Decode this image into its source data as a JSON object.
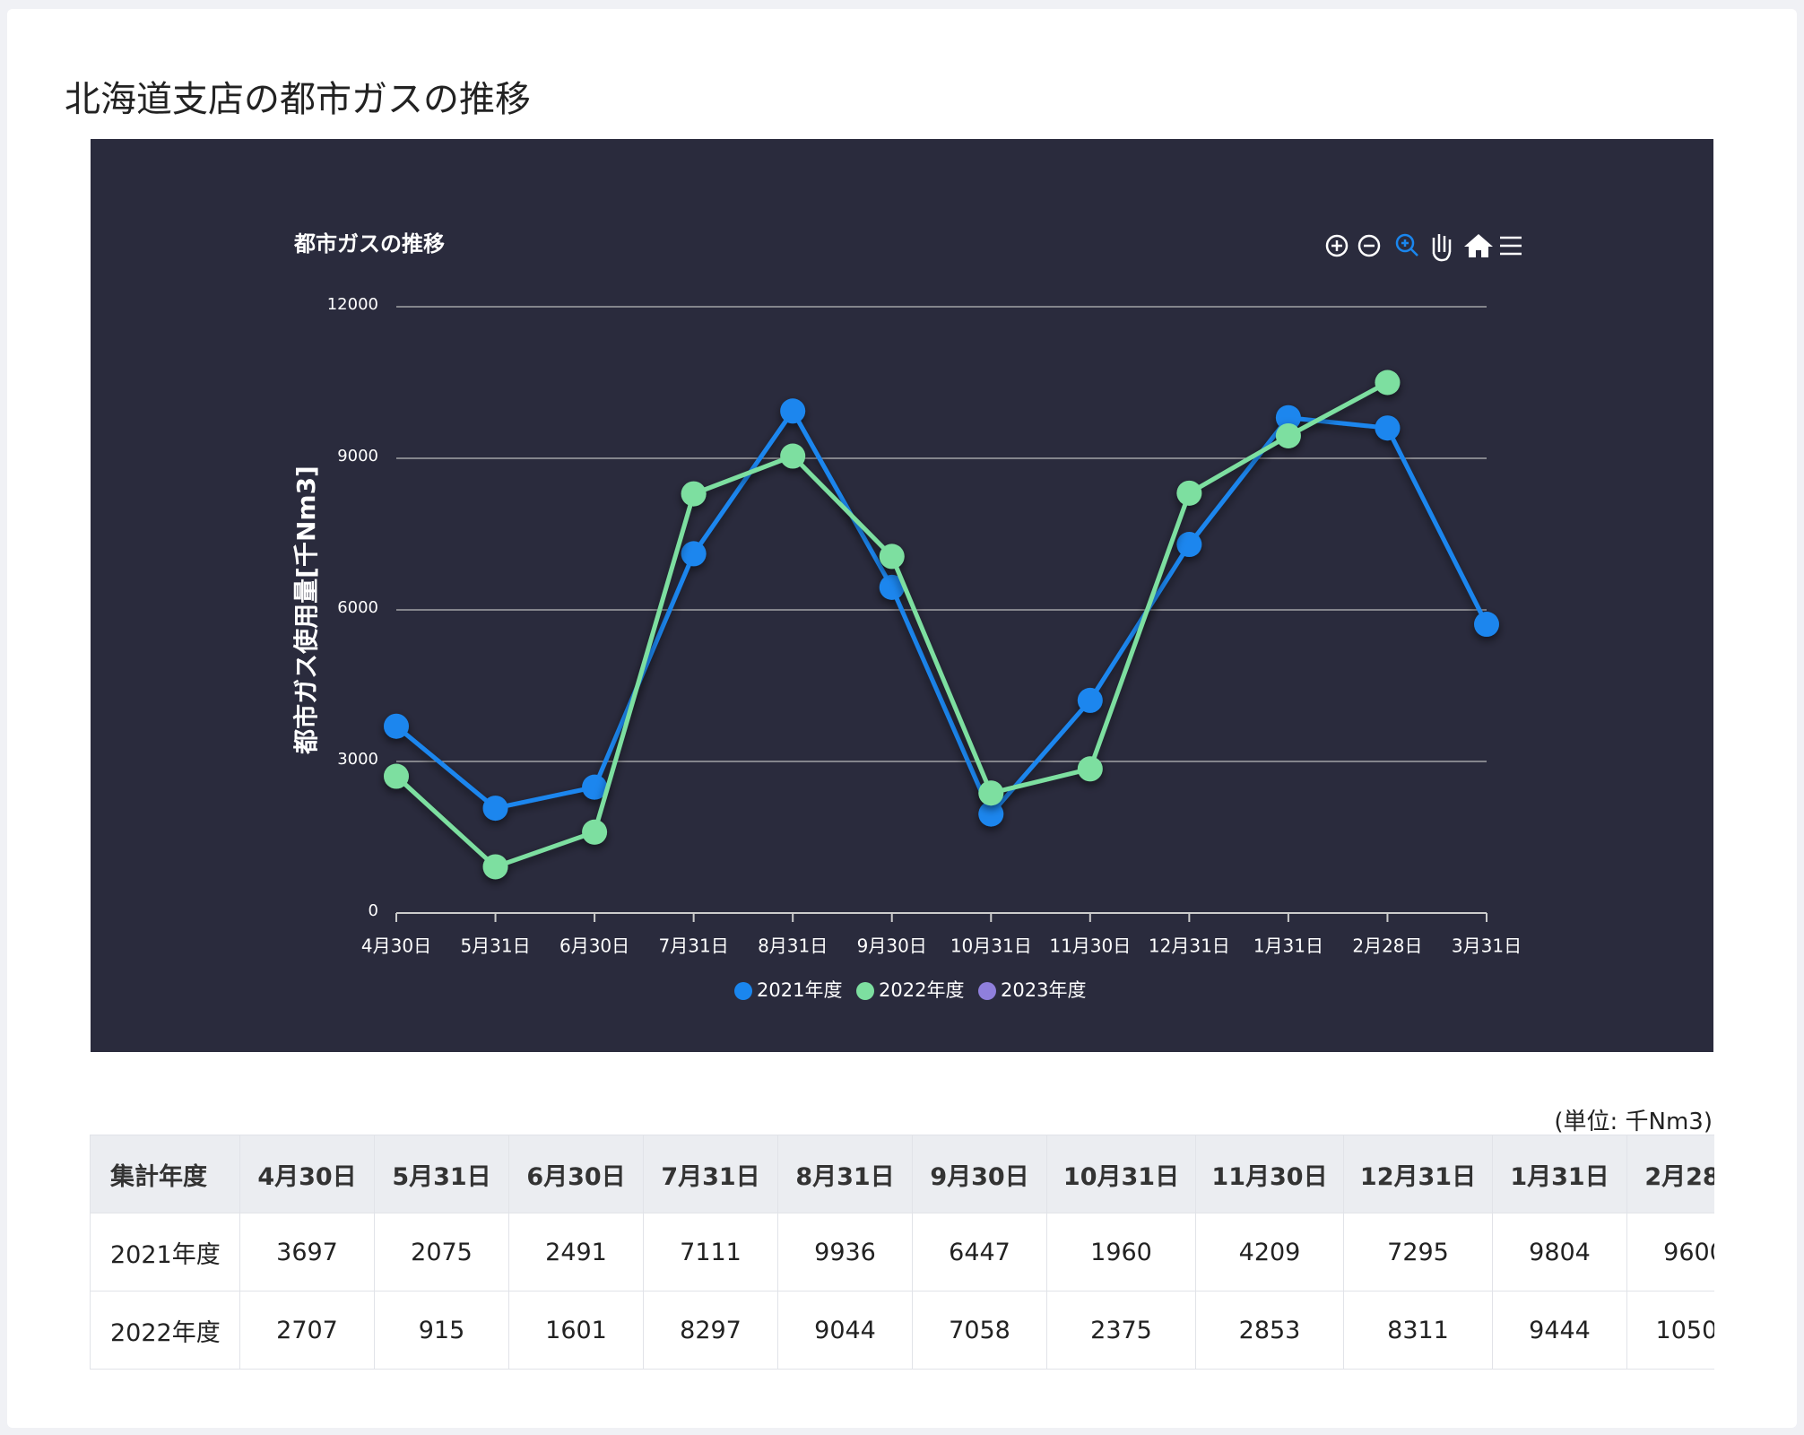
{
  "header": {
    "title": "北海道支店の都市ガスの推移"
  },
  "chart_data": {
    "type": "line",
    "title": "都市ガスの推移",
    "y_label": "都市ガス使用量[千Nm3]",
    "categories": [
      "4月30日",
      "5月31日",
      "6月30日",
      "7月31日",
      "8月31日",
      "9月30日",
      "10月31日",
      "11月30日",
      "12月31日",
      "1月31日",
      "2月28日",
      "3月31日"
    ],
    "series": [
      {
        "name": "2021年度",
        "color": "#1a86ee",
        "values": [
          3697,
          2075,
          2491,
          7111,
          9936,
          6447,
          1960,
          4209,
          7295,
          9804,
          9600,
          5715
        ]
      },
      {
        "name": "2022年度",
        "color": "#7ddfa0",
        "values": [
          2707,
          915,
          1601,
          8297,
          9044,
          7058,
          2375,
          2853,
          8311,
          9444,
          10500,
          null
        ]
      },
      {
        "name": "2023年度",
        "color": "#8f7fdc",
        "values": [
          null,
          null,
          null,
          null,
          null,
          null,
          null,
          null,
          null,
          null,
          null,
          null
        ]
      }
    ],
    "ylim": [
      0,
      12000
    ],
    "yticks": [
      0,
      3000,
      6000,
      9000,
      12000
    ],
    "grid": true,
    "legend": "bottom"
  },
  "table": {
    "corner_label": "集計年度",
    "unit": "(単位: 千Nm3)"
  }
}
